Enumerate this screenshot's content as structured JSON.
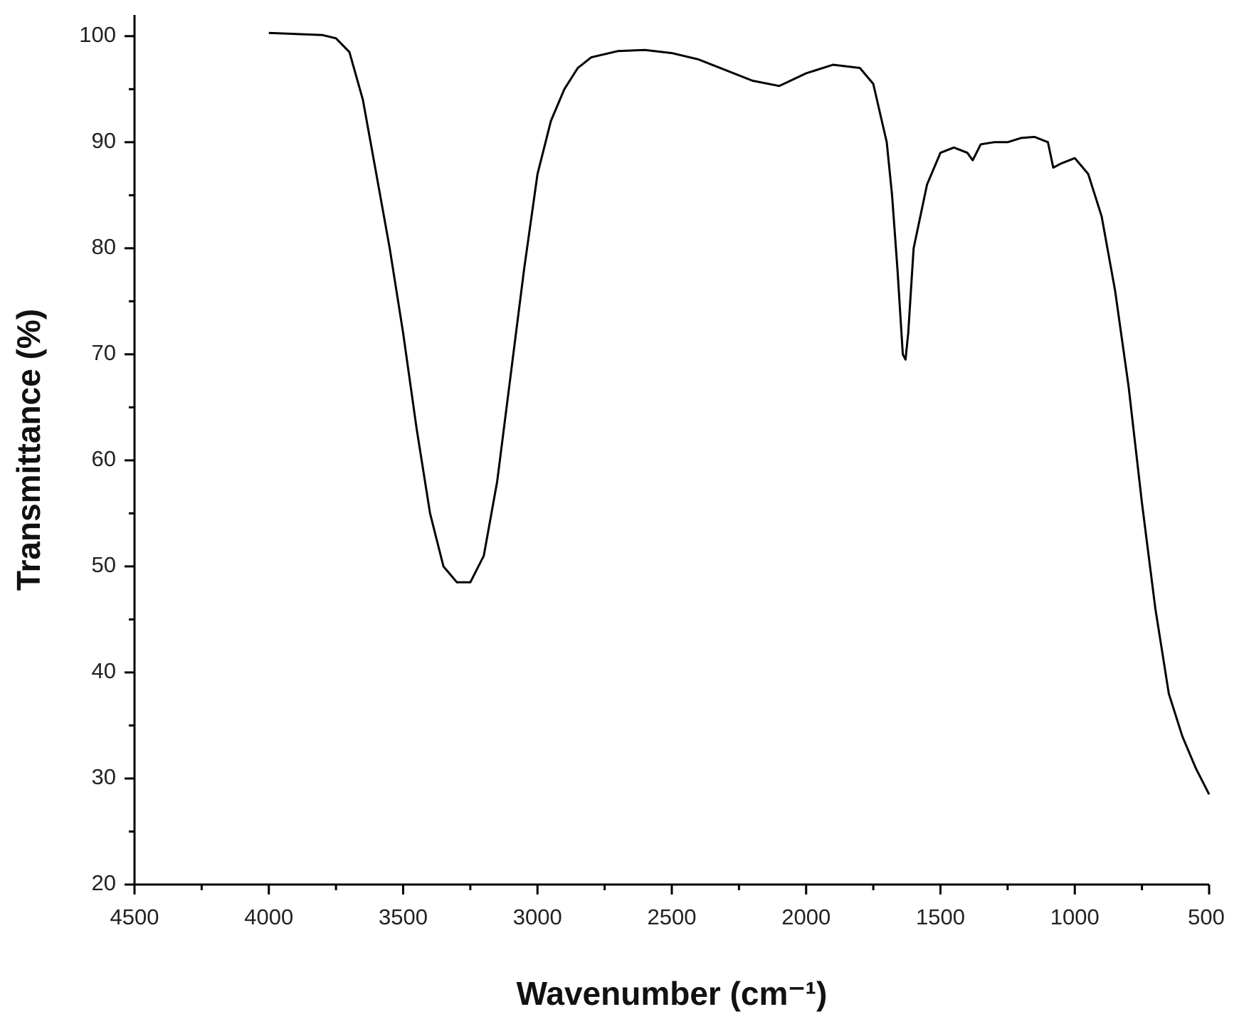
{
  "chart_data": {
    "type": "line",
    "xlabel": "Wavenumber (cm⁻¹)",
    "ylabel": "Transmittance (%)",
    "x": [
      4000,
      3900,
      3800,
      3750,
      3700,
      3650,
      3600,
      3550,
      3500,
      3450,
      3400,
      3350,
      3300,
      3250,
      3200,
      3150,
      3100,
      3050,
      3000,
      2950,
      2900,
      2850,
      2800,
      2700,
      2600,
      2500,
      2400,
      2300,
      2200,
      2100,
      2000,
      1900,
      1800,
      1750,
      1700,
      1680,
      1660,
      1640,
      1630,
      1620,
      1600,
      1550,
      1500,
      1450,
      1400,
      1380,
      1350,
      1300,
      1250,
      1200,
      1150,
      1100,
      1080,
      1050,
      1000,
      950,
      900,
      850,
      800,
      750,
      700,
      650,
      600,
      550,
      500
    ],
    "values": [
      100.3,
      100.2,
      100.1,
      99.8,
      98.5,
      94,
      87,
      80,
      72,
      63,
      55,
      50,
      48.5,
      48.5,
      51,
      58,
      68,
      78,
      87,
      92,
      95,
      97,
      98,
      98.6,
      98.7,
      98.4,
      97.8,
      96.8,
      95.8,
      95.3,
      96.5,
      97.3,
      97,
      95.5,
      90,
      85,
      78,
      70,
      69.5,
      72,
      80,
      86,
      89,
      89.5,
      89,
      88.3,
      89.8,
      90,
      90,
      90.4,
      90.5,
      90,
      87.6,
      88,
      88.5,
      87,
      83,
      76,
      67,
      56,
      46,
      38,
      34,
      31,
      28.5
    ],
    "color": "#000000",
    "xlim": [
      4500,
      500
    ],
    "ylim": [
      20,
      102
    ],
    "xticks": [
      4500,
      4000,
      3500,
      3000,
      2500,
      2000,
      1500,
      1000,
      500
    ],
    "yticks": [
      20,
      30,
      40,
      50,
      60,
      70,
      80,
      90,
      100
    ],
    "x_minor_ticks": [
      4250,
      3750,
      3250,
      2750,
      2250,
      1750,
      1250,
      750
    ],
    "y_minor_ticks": [
      25,
      35,
      45,
      55,
      65,
      75,
      85,
      95
    ]
  }
}
